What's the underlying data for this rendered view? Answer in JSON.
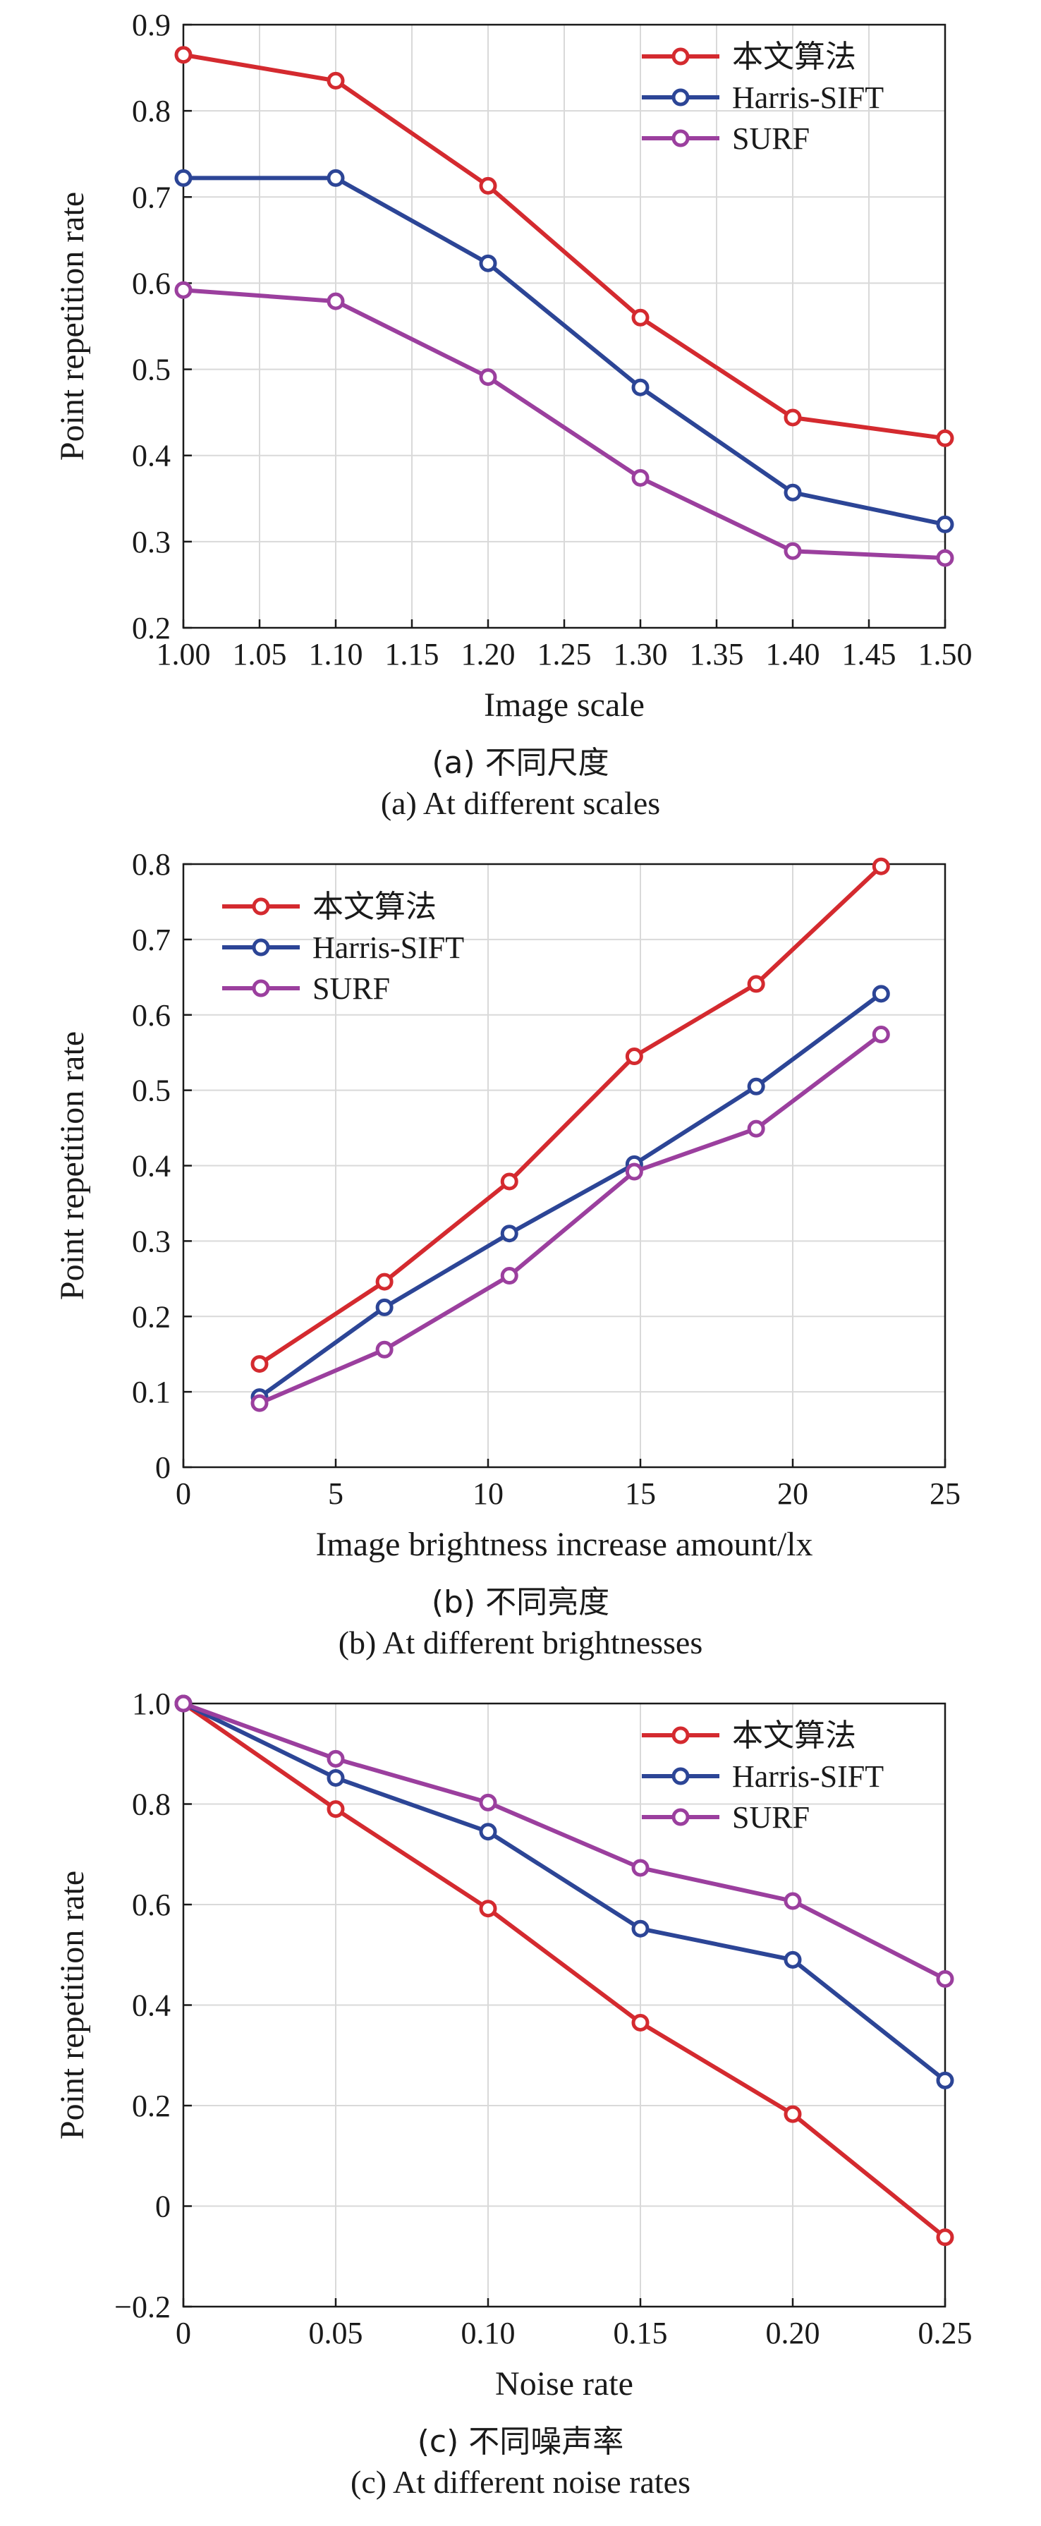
{
  "colors": {
    "red": "#d42a2f",
    "blue": "#2c4596",
    "purple": "#9b3f9e",
    "grid": "#d9d9d9"
  },
  "chart_data": [
    {
      "type": "line",
      "title": "",
      "xlabel": "Image scale",
      "ylabel": "Point repetition rate",
      "caption_cn": "(a) 不同尺度",
      "caption_en": "(a) At different scales",
      "xlim": [
        1.0,
        1.5
      ],
      "ylim": [
        0.2,
        0.9
      ],
      "xticks": [
        "1.00",
        "1.05",
        "1.10",
        "1.15",
        "1.20",
        "1.25",
        "1.30",
        "1.35",
        "1.40",
        "1.45",
        "1.50"
      ],
      "yticks": [
        "0.2",
        "0.3",
        "0.4",
        "0.5",
        "0.6",
        "0.7",
        "0.8",
        "0.9"
      ],
      "grid": true,
      "legend_position": "top-right",
      "x": [
        1.0,
        1.1,
        1.2,
        1.3,
        1.4,
        1.5
      ],
      "series": [
        {
          "name": "本文算法",
          "color": "#d42a2f",
          "values": [
            0.865,
            0.835,
            0.713,
            0.56,
            0.444,
            0.42
          ]
        },
        {
          "name": "Harris-SIFT",
          "color": "#2c4596",
          "values": [
            0.722,
            0.722,
            0.623,
            0.479,
            0.357,
            0.32
          ]
        },
        {
          "name": "SURF",
          "color": "#9b3f9e",
          "values": [
            0.592,
            0.579,
            0.491,
            0.374,
            0.289,
            0.281
          ]
        }
      ]
    },
    {
      "type": "line",
      "title": "",
      "xlabel": "Image brightness increase amount/lx",
      "ylabel": "Point repetition rate",
      "caption_cn": "(b) 不同亮度",
      "caption_en": "(b) At different brightnesses",
      "xlim": [
        0,
        25
      ],
      "ylim": [
        0,
        0.8
      ],
      "xticks": [
        "0",
        "5",
        "10",
        "15",
        "20",
        "25"
      ],
      "yticks": [
        "0",
        "0.1",
        "0.2",
        "0.3",
        "0.4",
        "0.5",
        "0.6",
        "0.7",
        "0.8"
      ],
      "grid": true,
      "legend_position": "top-left",
      "x": [
        2.5,
        6.6,
        10.7,
        14.8,
        18.8,
        22.9
      ],
      "series": [
        {
          "name": "本文算法",
          "color": "#d42a2f",
          "values": [
            0.137,
            0.246,
            0.379,
            0.545,
            0.641,
            0.797
          ]
        },
        {
          "name": "Harris-SIFT",
          "color": "#2c4596",
          "values": [
            0.093,
            0.212,
            0.31,
            0.402,
            0.505,
            0.628
          ]
        },
        {
          "name": "SURF",
          "color": "#9b3f9e",
          "values": [
            0.085,
            0.156,
            0.254,
            0.392,
            0.449,
            0.574
          ]
        }
      ]
    },
    {
      "type": "line",
      "title": "",
      "xlabel": "Noise rate",
      "ylabel": "Point repetition rate",
      "caption_cn": "(c) 不同噪声率",
      "caption_en": "(c) At different noise rates",
      "xlim": [
        0,
        0.25
      ],
      "ylim": [
        -0.2,
        1.0
      ],
      "xticks": [
        "0",
        "0.05",
        "0.10",
        "0.15",
        "0.20",
        "0.25"
      ],
      "yticks": [
        "−0.2",
        "0",
        "0.2",
        "0.4",
        "0.6",
        "0.8",
        "1.0"
      ],
      "grid": true,
      "legend_position": "top-right",
      "x": [
        0,
        0.05,
        0.1,
        0.15,
        0.2,
        0.25
      ],
      "series": [
        {
          "name": "本文算法",
          "color": "#d42a2f",
          "values": [
            1.0,
            0.79,
            0.592,
            0.365,
            0.183,
            -0.062
          ]
        },
        {
          "name": "Harris-SIFT",
          "color": "#2c4596",
          "values": [
            1.0,
            0.852,
            0.745,
            0.552,
            0.49,
            0.25
          ]
        },
        {
          "name": "SURF",
          "color": "#9b3f9e",
          "values": [
            1.0,
            0.89,
            0.803,
            0.673,
            0.607,
            0.452
          ]
        }
      ]
    }
  ]
}
